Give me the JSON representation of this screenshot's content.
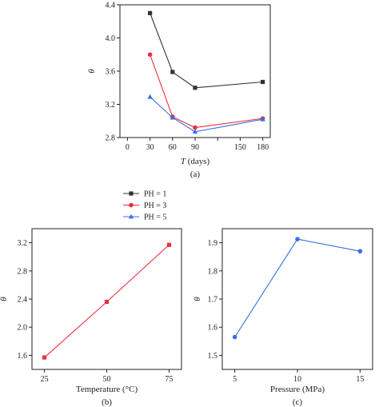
{
  "chart_data": [
    {
      "id": "a",
      "type": "line",
      "panel_label": "(a)",
      "xlabel_var": "T",
      "xlabel_unit": " (days)",
      "ylabel": "θ",
      "xlim": [
        -10,
        190
      ],
      "ylim": [
        2.8,
        4.4
      ],
      "x_ticks": [
        0,
        30,
        60,
        90,
        150,
        180
      ],
      "x_tick_labels": [
        "0",
        "30",
        "60",
        "90",
        "150",
        "180"
      ],
      "x_tick_positions": [
        0,
        30,
        60,
        90,
        120,
        150,
        180
      ],
      "y_ticks": [
        2.8,
        3.2,
        3.6,
        4.0,
        4.4
      ],
      "y_tick_labels": [
        "2.8",
        "3.2",
        "3.6",
        "4.0",
        "4.4"
      ],
      "x": [
        30,
        60,
        90,
        180
      ],
      "series": [
        {
          "name": "PH = 1",
          "values": [
            4.3,
            3.59,
            3.4,
            3.47
          ],
          "color": "#333333",
          "marker": "square"
        },
        {
          "name": "PH = 3",
          "values": [
            3.8,
            3.05,
            2.92,
            3.03
          ],
          "color": "#e8303a",
          "marker": "circle"
        },
        {
          "name": "PH = 5",
          "values": [
            3.29,
            3.04,
            2.87,
            3.02
          ],
          "color": "#3a6fe6",
          "marker": "triangle"
        }
      ],
      "legend": {
        "placement": "bottom-left",
        "entries": [
          "PH = 1",
          "PH = 3",
          "PH = 5"
        ]
      }
    },
    {
      "id": "b",
      "type": "line",
      "panel_label": "(b)",
      "xlabel": "Temperature (°C)",
      "ylabel": "θ",
      "xlim": [
        20,
        80
      ],
      "ylim": [
        1.4,
        3.4
      ],
      "x_ticks": [
        25,
        50,
        75
      ],
      "x_tick_labels": [
        "25",
        "50",
        "75"
      ],
      "y_ticks": [
        1.6,
        2.0,
        2.4,
        2.8,
        3.2
      ],
      "y_tick_labels": [
        "1.6",
        "2.0",
        "2.4",
        "2.8",
        "3.2"
      ],
      "x": [
        25,
        50,
        75
      ],
      "series": [
        {
          "values": [
            1.57,
            2.36,
            3.17
          ],
          "color": "#e8303a",
          "marker": "square"
        }
      ]
    },
    {
      "id": "c",
      "type": "line",
      "panel_label": "(c)",
      "xlabel": "Pressure (MPa)",
      "ylabel": "θ",
      "xlim": [
        4,
        16
      ],
      "ylim": [
        1.45,
        1.95
      ],
      "x_ticks": [
        5,
        10,
        15
      ],
      "x_tick_labels": [
        "5",
        "10",
        "15"
      ],
      "y_ticks": [
        1.5,
        1.6,
        1.7,
        1.8,
        1.9
      ],
      "y_tick_labels": [
        "1.5",
        "1.6",
        "1.7",
        "1.8",
        "1.9"
      ],
      "x": [
        5,
        10,
        15
      ],
      "series": [
        {
          "values": [
            1.565,
            1.913,
            1.87
          ],
          "color": "#3a6fe6",
          "marker": "circle"
        }
      ]
    }
  ]
}
